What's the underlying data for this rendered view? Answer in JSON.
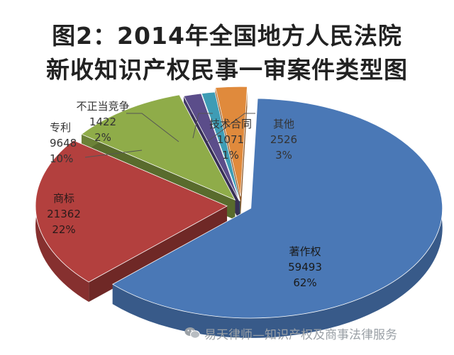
{
  "chart_data": {
    "type": "pie",
    "title_line1": "图2：2014年全国地方人民法院",
    "title_line2": "新收知识产权民事一审案件类型图",
    "slices": [
      {
        "name": "著作权",
        "value": 59493,
        "percent": "62%",
        "color": "#4a78b6"
      },
      {
        "name": "商标",
        "value": 21362,
        "percent": "22%",
        "color": "#b3403e"
      },
      {
        "name": "专利",
        "value": 9648,
        "percent": "10%",
        "color": "#8fac49"
      },
      {
        "name": "不正当竞争",
        "value": 1422,
        "percent": "2%",
        "color": "#5b4d8a"
      },
      {
        "name": "技术合同",
        "value": 1071,
        "percent": "1%",
        "color": "#3e9cb5"
      },
      {
        "name": "其他",
        "value": 2526,
        "percent": "3%",
        "color": "#e08a3c"
      }
    ]
  },
  "watermark": {
    "text": "易天律师—知识产权及商事法律服务"
  }
}
